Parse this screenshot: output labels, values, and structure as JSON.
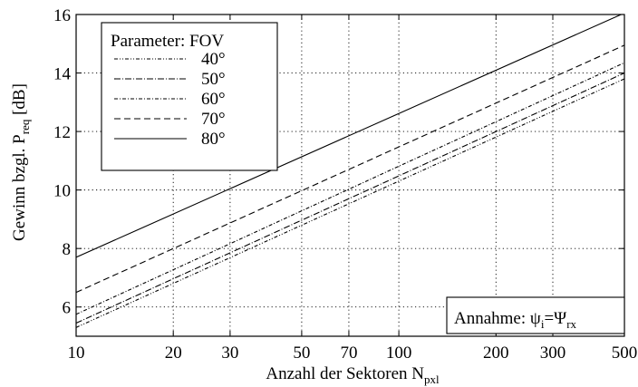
{
  "chart_data": {
    "type": "line",
    "xscale": "log",
    "xlim": [
      10,
      500
    ],
    "ylim": [
      5,
      16
    ],
    "grid": true,
    "xticks": [
      10,
      20,
      30,
      50,
      70,
      100,
      200,
      300,
      500
    ],
    "xtick_labels": [
      "10",
      "20",
      "30",
      "50",
      "70",
      "100",
      "200",
      "300",
      "500"
    ],
    "yticks": [
      6,
      8,
      10,
      12,
      14,
      16
    ],
    "ytick_labels": [
      "6",
      "8",
      "10",
      "12",
      "14",
      "16"
    ],
    "xlabel": {
      "main": "Anzahl der Sektoren N",
      "sub": "pxl"
    },
    "ylabel": {
      "main": "Gewinn bzgl. P",
      "sub": "req",
      "suffix": " [dB]"
    },
    "legend": {
      "title": "Parameter: FOV",
      "placement": "top-left"
    },
    "annotation": {
      "text": "Annahme: ",
      "lhs": "ψ",
      "lhs_sub": "i",
      "eq": "=",
      "rhs": "Ψ",
      "rhs_sub": "rx",
      "placement": "bottom-right"
    },
    "series": [
      {
        "name": "40°",
        "dash": "4 2 1 2 1 2",
        "x": [
          10,
          500
        ],
        "y": [
          5.3,
          13.8
        ]
      },
      {
        "name": "50°",
        "dash": "7 2 1 2",
        "x": [
          10,
          500
        ],
        "y": [
          5.45,
          14.0
        ]
      },
      {
        "name": "60°",
        "dash": "4 2 1 2",
        "x": [
          10,
          500
        ],
        "y": [
          5.75,
          14.35
        ]
      },
      {
        "name": "70°",
        "dash": "7 4",
        "x": [
          10,
          500
        ],
        "y": [
          6.5,
          14.95
        ]
      },
      {
        "name": "80°",
        "dash": "",
        "x": [
          10,
          500
        ],
        "y": [
          7.7,
          16.05
        ]
      }
    ]
  }
}
